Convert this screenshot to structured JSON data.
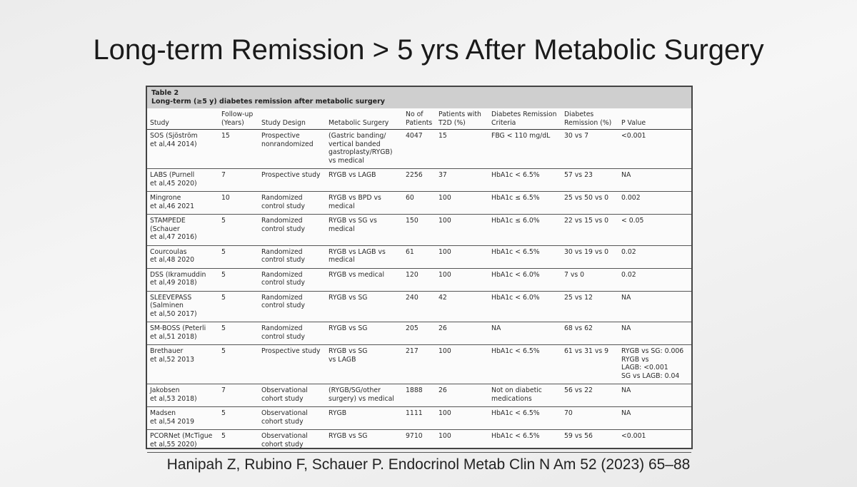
{
  "title": "Long-term Remission > 5 yrs After Metabolic Surgery",
  "table": {
    "label": "Table 2",
    "caption": "Long-term (≥5 y) diabetes remission after metabolic surgery",
    "headers": [
      "Study",
      "Follow-up\n(Years)",
      "Study Design",
      "Metabolic Surgery",
      "No of\nPatients",
      "Patients with\nT2D (%)",
      "Diabetes Remission\nCriteria",
      "Diabetes\nRemission (%)",
      "P Value"
    ],
    "rows": [
      [
        "SOS (Sjöström\net al,44 2014)",
        "15",
        "Prospective\nnonrandomized",
        "(Gastric banding/\nvertical banded\ngastroplasty/RYGB)\nvs medical",
        "4047",
        "15",
        "FBG < 110 mg/dL",
        "30 vs 7",
        "<0.001"
      ],
      [
        "LABS (Purnell\net al,45 2020)",
        "7",
        "Prospective study",
        "RYGB vs LAGB",
        "2256",
        "37",
        "HbA1c < 6.5%",
        "57 vs 23",
        "NA"
      ],
      [
        "Mingrone\net al,46 2021",
        "10",
        "Randomized\ncontrol study",
        "RYGB vs BPD vs\nmedical",
        "60",
        "100",
        "HbA1c ≤ 6.5%",
        "25 vs 50 vs 0",
        "0.002"
      ],
      [
        "STAMPEDE\n(Schauer\net al,47 2016)",
        "5",
        "Randomized\ncontrol study",
        "RYGB vs SG vs\nmedical",
        "150",
        "100",
        "HbA1c ≤ 6.0%",
        "22 vs 15 vs 0",
        "< 0.05"
      ],
      [
        "Courcoulas\net al,48 2020",
        "5",
        "Randomized\ncontrol study",
        "RYGB vs LAGB vs\nmedical",
        "61",
        "100",
        "HbA1c < 6.5%",
        "30 vs 19 vs 0",
        "0.02"
      ],
      [
        "DSS (Ikramuddin\net al,49 2018)",
        "5",
        "Randomized\ncontrol study",
        "RYGB vs medical",
        "120",
        "100",
        "HbA1c < 6.0%",
        "7 vs 0",
        "0.02"
      ],
      [
        "SLEEVEPASS\n(Salminen\net al,50 2017)",
        "5",
        "Randomized\ncontrol study",
        "RYGB vs SG",
        "240",
        "42",
        "HbA1c < 6.0%",
        "25 vs 12",
        "NA"
      ],
      [
        "SM-BOSS (Peterli\net al,51 2018)",
        "5",
        "Randomized\ncontrol study",
        "RYGB vs SG",
        "205",
        "26",
        "NA",
        "68 vs 62",
        "NA"
      ],
      [
        "Brethauer\net al,52 2013",
        "5",
        "Prospective study",
        "RYGB vs SG\nvs LAGB",
        "217",
        "100",
        "HbA1c < 6.5%",
        "61 vs 31 vs 9",
        "RYGB vs SG: 0.006\nRYGB vs\nLAGB: <0.001\nSG vs LAGB: 0.04"
      ],
      [
        "Jakobsen\net al,53 2018)",
        "7",
        "Observational\ncohort study",
        "(RYGB/SG/other\nsurgery) vs medical",
        "1888",
        "26",
        "Not on diabetic\nmedications",
        "56 vs 22",
        "NA"
      ],
      [
        "Madsen\net al,54 2019",
        "5",
        "Observational\ncohort study",
        "RYGB",
        "1111",
        "100",
        "HbA1c < 6.5%",
        "70",
        "NA"
      ],
      [
        "PCORNet (McTigue\net al,55 2020)",
        "5",
        "Observational\ncohort study",
        "RYGB vs SG",
        "9710",
        "100",
        "HbA1c < 6.5%",
        "59 vs 56",
        "<0.001"
      ]
    ]
  },
  "citation": "Hanipah Z, Rubino F, Schauer P. Endocrinol Metab Clin N Am 52 (2023) 65–88"
}
